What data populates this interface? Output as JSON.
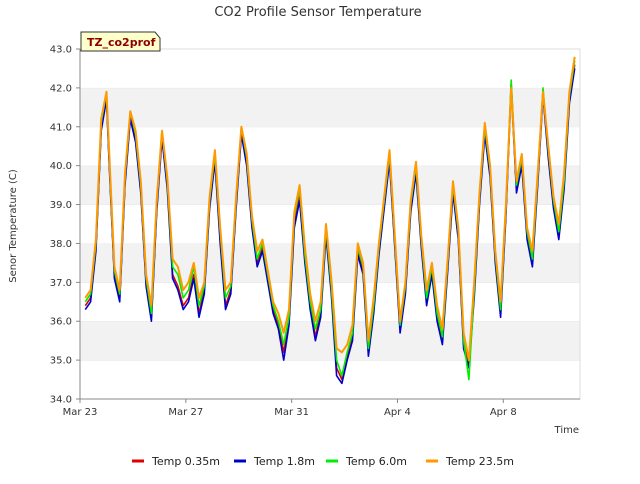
{
  "chart_data": {
    "type": "line",
    "title": "CO2 Profile Sensor Temperature",
    "xlabel": "Time",
    "ylabel": "Senor Temperature (C)",
    "station_label": "TZ_co2prof",
    "ylim": [
      34.0,
      43.0
    ],
    "yticks": [
      "34.0",
      "35.0",
      "36.0",
      "37.0",
      "38.0",
      "39.0",
      "40.0",
      "41.0",
      "42.0",
      "43.0"
    ],
    "xlim_days": [
      0,
      18.9
    ],
    "xticks": [
      {
        "label": "Mar 23",
        "day": 0
      },
      {
        "label": "Mar 27",
        "day": 4
      },
      {
        "label": "Mar 31",
        "day": 8
      },
      {
        "label": "Apr 4",
        "day": 12
      },
      {
        "label": "Apr 8",
        "day": 16
      }
    ],
    "grid": "horizontal bands",
    "legend_position": "bottom",
    "series": [
      {
        "name": "Temp 0.35m",
        "color": "#dd0000",
        "x": [
          0.2,
          0.4,
          0.6,
          0.8,
          1.0,
          1.1,
          1.3,
          1.5,
          1.7,
          1.9,
          2.1,
          2.3,
          2.5,
          2.7,
          2.9,
          3.1,
          3.3,
          3.5,
          3.7,
          3.9,
          4.1,
          4.3,
          4.5,
          4.7,
          4.9,
          5.1,
          5.3,
          5.5,
          5.7,
          5.9,
          6.1,
          6.3,
          6.5,
          6.7,
          6.9,
          7.1,
          7.3,
          7.5,
          7.7,
          7.9,
          8.1,
          8.3,
          8.5,
          8.7,
          8.9,
          9.1,
          9.3,
          9.5,
          9.7,
          9.9,
          10.1,
          10.3,
          10.5,
          10.7,
          10.9,
          11.1,
          11.3,
          11.5,
          11.7,
          11.9,
          12.1,
          12.3,
          12.5,
          12.7,
          12.9,
          13.1,
          13.3,
          13.5,
          13.7,
          13.9,
          14.1,
          14.3,
          14.5,
          14.7,
          14.9,
          15.1,
          15.3,
          15.5,
          15.7,
          15.9,
          16.1,
          16.3,
          16.5,
          16.7,
          16.9,
          17.1,
          17.3,
          17.5,
          17.7,
          17.9,
          18.1,
          18.3,
          18.5,
          18.7
        ],
        "values": [
          36.4,
          36.6,
          37.9,
          41.0,
          41.8,
          40.2,
          37.2,
          36.6,
          39.6,
          41.3,
          40.7,
          39.4,
          37.0,
          36.1,
          38.9,
          40.8,
          39.5,
          37.2,
          36.9,
          36.4,
          36.6,
          37.2,
          36.2,
          36.8,
          39.0,
          40.2,
          38.1,
          36.4,
          36.8,
          39.0,
          40.9,
          40.1,
          38.5,
          37.5,
          37.9,
          37.1,
          36.3,
          35.9,
          35.2,
          36.0,
          38.5,
          39.2,
          37.6,
          36.4,
          35.6,
          36.2,
          38.3,
          36.8,
          34.8,
          34.5,
          35.1,
          35.6,
          37.8,
          37.3,
          35.2,
          36.3,
          37.8,
          39.0,
          40.2,
          38.0,
          35.8,
          36.8,
          38.9,
          39.9,
          38.0,
          36.5,
          37.3,
          36.1,
          35.5,
          37.4,
          39.4,
          38.2,
          35.4,
          34.9,
          36.7,
          39.1,
          40.9,
          39.8,
          37.6,
          36.2,
          38.8,
          42.1,
          39.4,
          40.1,
          38.2,
          37.5,
          39.6,
          41.9,
          40.3,
          39.0,
          38.2,
          39.5,
          41.7,
          42.6
        ]
      },
      {
        "name": "Temp 1.8m",
        "color": "#0000cc",
        "x": [
          0.2,
          0.4,
          0.6,
          0.8,
          1.0,
          1.1,
          1.3,
          1.5,
          1.7,
          1.9,
          2.1,
          2.3,
          2.5,
          2.7,
          2.9,
          3.1,
          3.3,
          3.5,
          3.7,
          3.9,
          4.1,
          4.3,
          4.5,
          4.7,
          4.9,
          5.1,
          5.3,
          5.5,
          5.7,
          5.9,
          6.1,
          6.3,
          6.5,
          6.7,
          6.9,
          7.1,
          7.3,
          7.5,
          7.7,
          7.9,
          8.1,
          8.3,
          8.5,
          8.7,
          8.9,
          9.1,
          9.3,
          9.5,
          9.7,
          9.9,
          10.1,
          10.3,
          10.5,
          10.7,
          10.9,
          11.1,
          11.3,
          11.5,
          11.7,
          11.9,
          12.1,
          12.3,
          12.5,
          12.7,
          12.9,
          13.1,
          13.3,
          13.5,
          13.7,
          13.9,
          14.1,
          14.3,
          14.5,
          14.7,
          14.9,
          15.1,
          15.3,
          15.5,
          15.7,
          15.9,
          16.1,
          16.3,
          16.5,
          16.7,
          16.9,
          17.1,
          17.3,
          17.5,
          17.7,
          17.9,
          18.1,
          18.3,
          18.5,
          18.7
        ],
        "values": [
          36.3,
          36.5,
          37.8,
          40.9,
          41.7,
          40.1,
          37.1,
          36.5,
          39.5,
          41.2,
          40.6,
          39.3,
          36.9,
          36.0,
          38.8,
          40.7,
          39.4,
          37.1,
          36.8,
          36.3,
          36.5,
          37.1,
          36.1,
          36.7,
          38.9,
          40.1,
          38.0,
          36.3,
          36.7,
          38.9,
          40.8,
          40.0,
          38.4,
          37.4,
          37.8,
          37.0,
          36.2,
          35.8,
          35.0,
          35.9,
          38.4,
          39.1,
          37.5,
          36.3,
          35.5,
          36.1,
          38.2,
          36.7,
          34.6,
          34.4,
          35.0,
          35.5,
          37.7,
          37.2,
          35.1,
          36.2,
          37.7,
          38.9,
          40.1,
          37.9,
          35.7,
          36.7,
          38.8,
          39.8,
          37.9,
          36.4,
          37.2,
          36.0,
          35.4,
          37.3,
          39.3,
          38.1,
          35.3,
          34.8,
          36.6,
          39.0,
          40.8,
          39.7,
          37.5,
          36.1,
          38.7,
          42.0,
          39.3,
          40.0,
          38.1,
          37.4,
          39.5,
          41.8,
          40.2,
          38.9,
          38.1,
          39.4,
          41.6,
          42.5
        ]
      },
      {
        "name": "Temp 6.0m",
        "color": "#00ee00",
        "x": [
          0.2,
          0.4,
          0.6,
          0.8,
          1.0,
          1.1,
          1.3,
          1.5,
          1.7,
          1.9,
          2.1,
          2.3,
          2.5,
          2.7,
          2.9,
          3.1,
          3.3,
          3.5,
          3.7,
          3.9,
          4.1,
          4.3,
          4.5,
          4.7,
          4.9,
          5.1,
          5.3,
          5.5,
          5.7,
          5.9,
          6.1,
          6.3,
          6.5,
          6.7,
          6.9,
          7.1,
          7.3,
          7.5,
          7.7,
          7.9,
          8.1,
          8.3,
          8.5,
          8.7,
          8.9,
          9.1,
          9.3,
          9.5,
          9.7,
          9.9,
          10.1,
          10.3,
          10.5,
          10.7,
          10.9,
          11.1,
          11.3,
          11.5,
          11.7,
          11.9,
          12.1,
          12.3,
          12.5,
          12.7,
          12.9,
          13.1,
          13.3,
          13.5,
          13.7,
          13.9,
          14.1,
          14.3,
          14.5,
          14.7,
          14.9,
          15.1,
          15.3,
          15.5,
          15.7,
          15.9,
          16.1,
          16.3,
          16.5,
          16.7,
          16.9,
          17.1,
          17.3,
          17.5,
          17.7,
          17.9,
          18.1,
          18.3,
          18.5,
          18.7
        ],
        "values": [
          36.5,
          36.7,
          38.0,
          41.1,
          41.9,
          40.3,
          37.3,
          36.7,
          39.7,
          41.4,
          40.8,
          39.5,
          37.1,
          36.2,
          39.0,
          40.9,
          39.6,
          37.4,
          37.2,
          36.6,
          36.8,
          37.4,
          36.4,
          36.9,
          39.1,
          40.3,
          38.3,
          36.6,
          36.9,
          39.1,
          41.0,
          40.2,
          38.6,
          37.6,
          38.0,
          37.2,
          36.4,
          36.0,
          35.4,
          36.1,
          38.7,
          39.4,
          37.7,
          36.5,
          35.8,
          36.3,
          38.4,
          36.9,
          35.0,
          34.6,
          35.2,
          35.7,
          37.9,
          37.4,
          35.3,
          36.4,
          37.9,
          39.1,
          40.3,
          38.1,
          35.9,
          36.9,
          39.0,
          40.0,
          38.1,
          36.6,
          37.4,
          36.2,
          35.6,
          37.5,
          39.5,
          38.3,
          35.5,
          34.5,
          36.8,
          39.2,
          41.0,
          39.9,
          37.7,
          36.3,
          38.9,
          42.2,
          39.5,
          40.2,
          38.3,
          37.6,
          39.7,
          42.0,
          40.4,
          39.1,
          38.3,
          39.6,
          41.8,
          42.7
        ]
      },
      {
        "name": "Temp 23.5m",
        "color": "#ff9900",
        "x": [
          0.2,
          0.4,
          0.6,
          0.8,
          1.0,
          1.1,
          1.3,
          1.5,
          1.7,
          1.9,
          2.1,
          2.3,
          2.5,
          2.7,
          2.9,
          3.1,
          3.3,
          3.5,
          3.7,
          3.9,
          4.1,
          4.3,
          4.5,
          4.7,
          4.9,
          5.1,
          5.3,
          5.5,
          5.7,
          5.9,
          6.1,
          6.3,
          6.5,
          6.7,
          6.9,
          7.1,
          7.3,
          7.5,
          7.7,
          7.9,
          8.1,
          8.3,
          8.5,
          8.7,
          8.9,
          9.1,
          9.3,
          9.5,
          9.7,
          9.9,
          10.1,
          10.3,
          10.5,
          10.7,
          10.9,
          11.1,
          11.3,
          11.5,
          11.7,
          11.9,
          12.1,
          12.3,
          12.5,
          12.7,
          12.9,
          13.1,
          13.3,
          13.5,
          13.7,
          13.9,
          14.1,
          14.3,
          14.5,
          14.7,
          14.9,
          15.1,
          15.3,
          15.5,
          15.7,
          15.9,
          16.1,
          16.3,
          16.5,
          16.7,
          16.9,
          17.1,
          17.3,
          17.5,
          17.7,
          17.9,
          18.1,
          18.3,
          18.5,
          18.7
        ],
        "values": [
          36.6,
          36.8,
          38.1,
          41.2,
          41.9,
          40.4,
          37.4,
          36.8,
          39.8,
          41.4,
          40.9,
          39.6,
          37.2,
          36.4,
          39.1,
          40.9,
          39.7,
          37.6,
          37.4,
          36.8,
          37.0,
          37.5,
          36.6,
          37.0,
          39.2,
          40.4,
          38.4,
          36.8,
          37.0,
          39.2,
          41.0,
          40.3,
          38.7,
          37.8,
          38.1,
          37.3,
          36.5,
          36.2,
          35.7,
          36.3,
          38.8,
          39.5,
          37.9,
          36.7,
          36.0,
          36.5,
          38.5,
          37.1,
          35.3,
          35.2,
          35.4,
          35.9,
          38.0,
          37.5,
          35.5,
          36.6,
          38.0,
          39.2,
          40.4,
          38.2,
          36.0,
          37.0,
          39.1,
          40.1,
          38.2,
          36.8,
          37.5,
          36.4,
          35.8,
          37.6,
          39.6,
          38.4,
          35.7,
          35.0,
          37.0,
          39.3,
          41.1,
          40.0,
          37.8,
          36.5,
          39.0,
          42.0,
          39.6,
          40.3,
          38.4,
          37.8,
          39.8,
          41.9,
          40.5,
          39.2,
          38.5,
          39.8,
          41.9,
          42.8
        ]
      }
    ]
  }
}
